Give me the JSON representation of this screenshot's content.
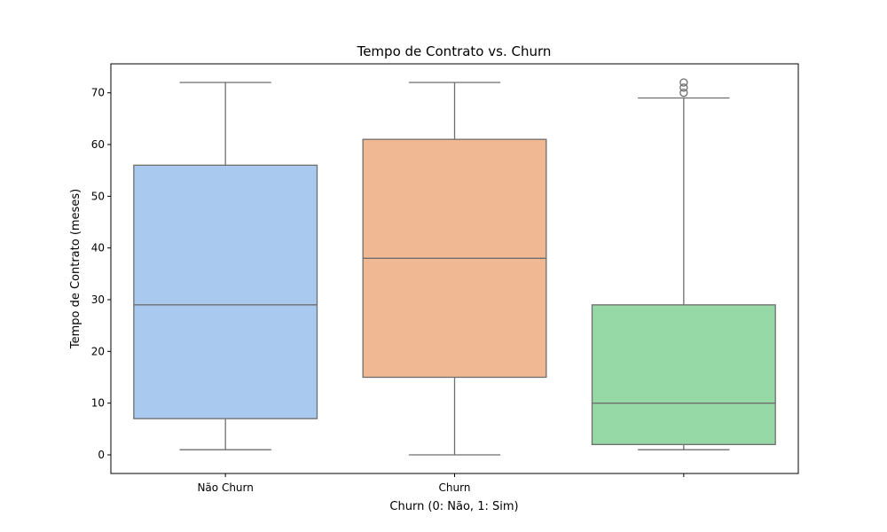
{
  "chart_data": {
    "type": "box",
    "title": "Tempo de Contrato vs. Churn",
    "xlabel": "Churn (0: Não, 1: Sim)",
    "ylabel": "Tempo de Contrato (meses)",
    "ylim": [
      -3.6,
      75.6
    ],
    "yticks": [
      0,
      10,
      20,
      30,
      40,
      50,
      60,
      70
    ],
    "grid": false,
    "categories": [
      "Não Churn",
      "Churn",
      ""
    ],
    "boxes": [
      {
        "category": "Não Churn",
        "whisker_low": 1,
        "q1": 7,
        "median": 29,
        "q3": 56,
        "whisker_high": 72,
        "outliers": [],
        "color": "#a9c9ee"
      },
      {
        "category": "Churn",
        "whisker_low": 0,
        "q1": 15,
        "median": 38,
        "q3": 61,
        "whisker_high": 72,
        "outliers": [],
        "color": "#f0b893"
      },
      {
        "category": "",
        "whisker_low": 1,
        "q1": 2,
        "median": 10,
        "q3": 29,
        "whisker_high": 69,
        "outliers": [
          70,
          71,
          72
        ],
        "color": "#97d8a7"
      }
    ],
    "box_edge_color": "#6e6e6e"
  }
}
